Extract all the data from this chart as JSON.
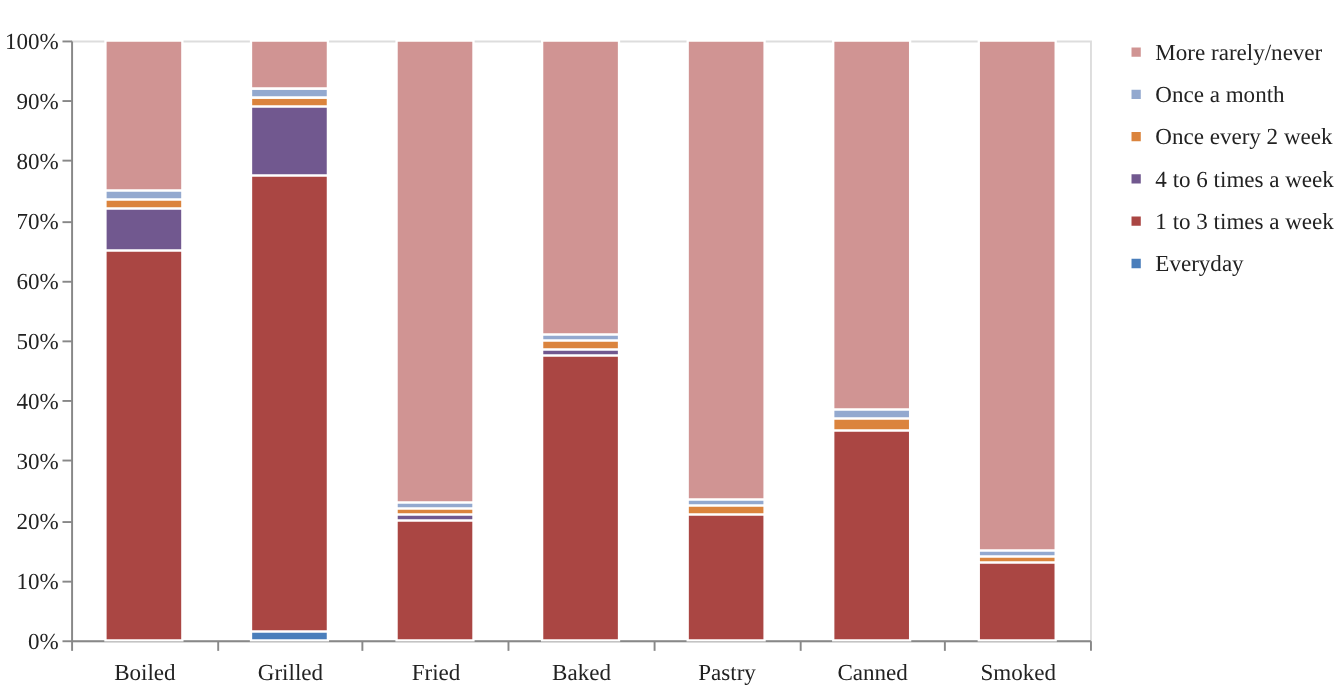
{
  "chart_data": {
    "type": "bar",
    "stacked": true,
    "categories": [
      "Boiled",
      "Grilled",
      "Fried",
      "Baked",
      "Pastry",
      "Canned",
      "Smoked"
    ],
    "series": [
      {
        "name": "Everyday",
        "color": "#4a7ebb",
        "values": [
          0,
          1.5,
          0,
          0,
          0,
          0,
          0
        ]
      },
      {
        "name": "1 to 3 times a week",
        "color": "#aa4643",
        "values": [
          65,
          76,
          20,
          47.5,
          21,
          35,
          13
        ]
      },
      {
        "name": "4 to 6 times a week",
        "color": "#71588f",
        "values": [
          7,
          11.5,
          1,
          1,
          0,
          0,
          0
        ]
      },
      {
        "name": "Once every 2 week",
        "color": "#db843d",
        "values": [
          1.5,
          1.5,
          1,
          1.5,
          1.5,
          2,
          1
        ]
      },
      {
        "name": "Once a month",
        "color": "#93a9cf",
        "values": [
          1.5,
          1.5,
          1,
          1,
          1,
          1.5,
          1
        ]
      },
      {
        "name": "More rarely/never",
        "color": "#d09493",
        "values": [
          25,
          8,
          77,
          49,
          76.5,
          61.5,
          85
        ]
      }
    ],
    "ylim": [
      0,
      100
    ],
    "yticks": [
      {
        "value": 0,
        "label": "0%"
      },
      {
        "value": 10,
        "label": "10%"
      },
      {
        "value": 20,
        "label": "20%"
      },
      {
        "value": 30,
        "label": "30%"
      },
      {
        "value": 40,
        "label": "40%"
      },
      {
        "value": 50,
        "label": "50%"
      },
      {
        "value": 60,
        "label": "60%"
      },
      {
        "value": 70,
        "label": "70%"
      },
      {
        "value": 80,
        "label": "80%"
      },
      {
        "value": 90,
        "label": "90%"
      },
      {
        "value": 100,
        "label": "100%"
      }
    ],
    "grid": false,
    "legend": "right"
  }
}
